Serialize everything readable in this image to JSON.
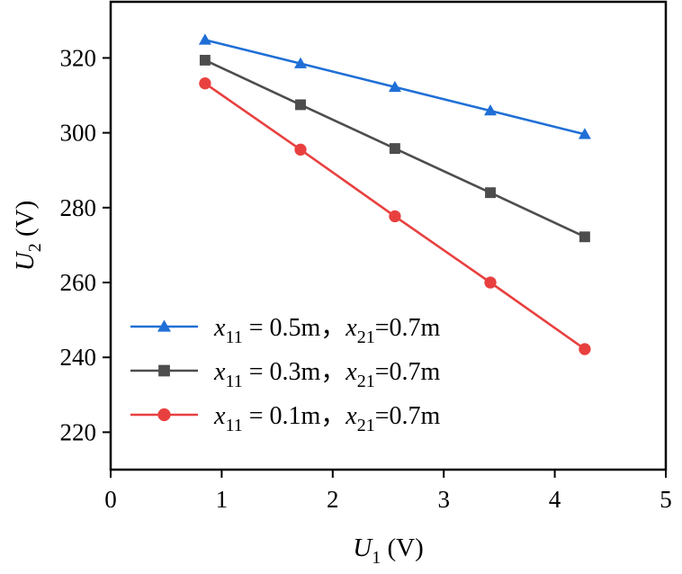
{
  "chart_data": {
    "type": "line",
    "title": "",
    "xlabel": {
      "main": "U",
      "sub": "1",
      "unit": " (V)"
    },
    "ylabel": {
      "main": "U",
      "sub": "2",
      "unit": " (V)"
    },
    "xlim": [
      0,
      5
    ],
    "ylim": [
      210,
      335
    ],
    "xticks": [
      0,
      1,
      2,
      3,
      4,
      5
    ],
    "yticks": [
      220,
      240,
      260,
      280,
      300,
      320
    ],
    "grid": false,
    "legend_position": "bottom-left",
    "x": [
      0.85,
      1.71,
      2.56,
      3.42,
      4.27
    ],
    "series": [
      {
        "name": "x11 = 0.5m，x21=0.7m",
        "legend": {
          "v1": "x",
          "s1": "11",
          "mid": " = 0.5m，",
          "v2": "x",
          "s2": "21",
          "end": "=0.7m"
        },
        "marker": "triangle",
        "color": "#1f6fd6",
        "values": [
          324.8,
          318.5,
          312.2,
          305.9,
          299.6
        ]
      },
      {
        "name": "x11 = 0.3m，x21=0.7m",
        "legend": {
          "v1": "x",
          "s1": "11",
          "mid": " = 0.3m，",
          "v2": "x",
          "s2": "21",
          "end": "=0.7m"
        },
        "marker": "square",
        "color": "#4d4d4d",
        "values": [
          319.4,
          307.5,
          295.8,
          284.0,
          272.2
        ]
      },
      {
        "name": "x11 = 0.1m，x21=0.7m",
        "legend": {
          "v1": "x",
          "s1": "11",
          "mid": " = 0.1m，",
          "v2": "x",
          "s2": "21",
          "end": "=0.7m"
        },
        "marker": "circle",
        "color": "#e8403f",
        "values": [
          313.2,
          295.5,
          277.7,
          260.0,
          242.2
        ]
      }
    ]
  }
}
